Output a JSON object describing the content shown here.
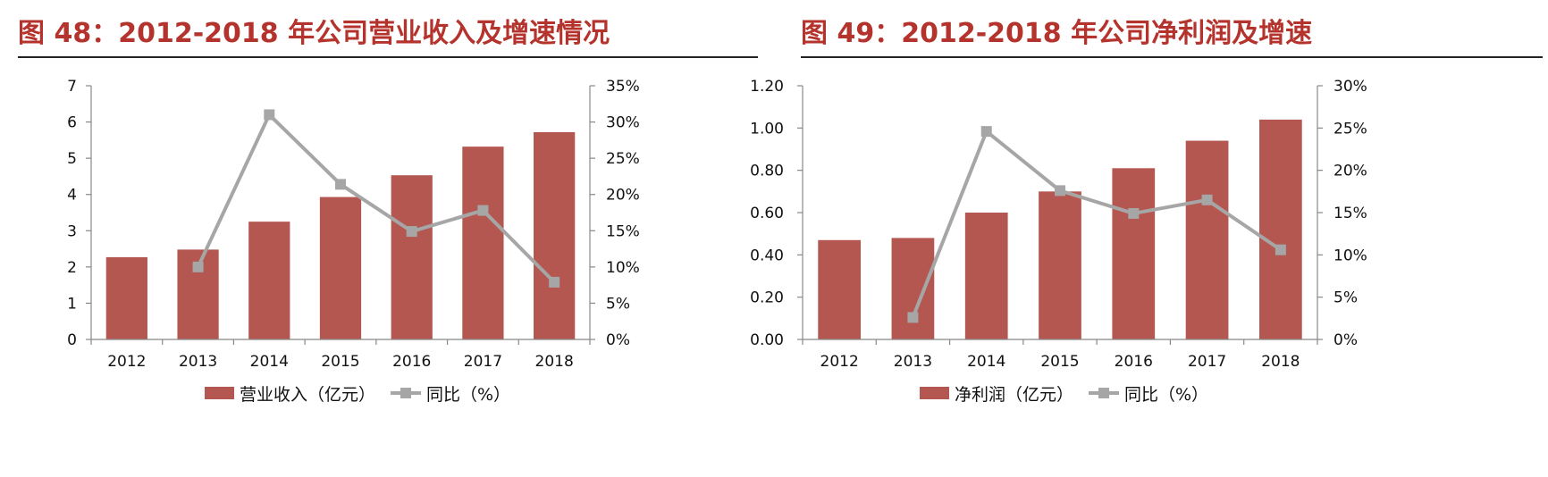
{
  "colors": {
    "title": "#b5332d",
    "bar": "#b35750",
    "line": "#a6a6a6",
    "axis": "#888888",
    "rule": "#222222"
  },
  "chart_data": [
    {
      "type": "bar",
      "title": "图  48：2012-2018 年公司营业收入及增速情况",
      "categories": [
        "2012",
        "2013",
        "2014",
        "2015",
        "2016",
        "2017",
        "2018"
      ],
      "series": [
        {
          "name": "营业收入（亿元）",
          "type": "bar",
          "axis": "left",
          "values": [
            2.27,
            2.48,
            3.25,
            3.93,
            4.53,
            5.32,
            5.72
          ]
        },
        {
          "name": "同比（%）",
          "type": "line",
          "axis": "right",
          "values": [
            null,
            0.1,
            0.31,
            0.214,
            0.149,
            0.178,
            0.079
          ]
        }
      ],
      "y_left": {
        "min": 0,
        "max": 7,
        "ticks": [
          0,
          1,
          2,
          3,
          4,
          5,
          6,
          7
        ],
        "tick_labels": [
          "0",
          "1",
          "2",
          "3",
          "4",
          "5",
          "6",
          "7"
        ]
      },
      "y_right": {
        "min": 0,
        "max": 0.35,
        "ticks": [
          0,
          0.05,
          0.1,
          0.15,
          0.2,
          0.25,
          0.3,
          0.35
        ],
        "tick_labels": [
          "0%",
          "5%",
          "10%",
          "15%",
          "20%",
          "25%",
          "30%",
          "35%"
        ]
      },
      "grid": false,
      "legend_position": "bottom"
    },
    {
      "type": "bar",
      "title": "图  49：2012-2018 年公司净利润及增速",
      "categories": [
        "2012",
        "2013",
        "2014",
        "2015",
        "2016",
        "2017",
        "2018"
      ],
      "series": [
        {
          "name": "净利润（亿元）",
          "type": "bar",
          "axis": "left",
          "values": [
            0.47,
            0.48,
            0.6,
            0.7,
            0.81,
            0.94,
            1.04
          ]
        },
        {
          "name": "同比（%）",
          "type": "line",
          "axis": "right",
          "values": [
            null,
            0.026,
            0.246,
            0.176,
            0.149,
            0.165,
            0.106
          ]
        }
      ],
      "y_left": {
        "min": 0,
        "max": 1.2,
        "ticks": [
          0,
          0.2,
          0.4,
          0.6,
          0.8,
          1.0,
          1.2
        ],
        "tick_labels": [
          "0.00",
          "0.20",
          "0.40",
          "0.60",
          "0.80",
          "1.00",
          "1.20"
        ]
      },
      "y_right": {
        "min": 0,
        "max": 0.3,
        "ticks": [
          0,
          0.05,
          0.1,
          0.15,
          0.2,
          0.25,
          0.3
        ],
        "tick_labels": [
          "0%",
          "5%",
          "10%",
          "15%",
          "20%",
          "25%",
          "30%"
        ]
      },
      "grid": false,
      "legend_position": "bottom"
    }
  ]
}
